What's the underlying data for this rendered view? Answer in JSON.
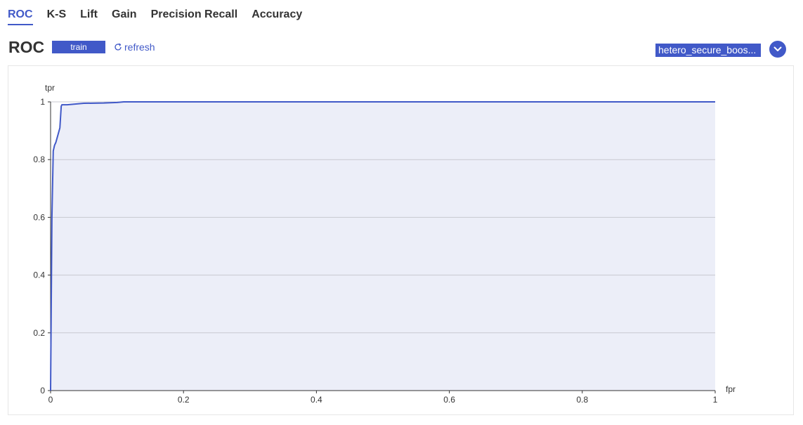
{
  "tabs": [
    {
      "label": "ROC",
      "active": true
    },
    {
      "label": "K-S",
      "active": false
    },
    {
      "label": "Lift",
      "active": false
    },
    {
      "label": "Gain",
      "active": false
    },
    {
      "label": "Precision Recall",
      "active": false
    },
    {
      "label": "Accuracy",
      "active": false
    }
  ],
  "header": {
    "title": "ROC",
    "train_label": "train",
    "refresh_label": "refresh",
    "model_select_value": "hetero_secure_boos..."
  },
  "colors": {
    "accent": "#4159c8",
    "area_fill": "#eceef8",
    "grid": "#c8c8d0"
  },
  "chart_data": {
    "type": "area",
    "xlabel": "fpr",
    "ylabel": "tpr",
    "xlim": [
      0,
      1
    ],
    "ylim": [
      0,
      1
    ],
    "xticks": [
      0,
      0.2,
      0.4,
      0.6,
      0.8,
      1
    ],
    "yticks": [
      0,
      0.2,
      0.4,
      0.6,
      0.8,
      1
    ],
    "grid": true,
    "series": [
      {
        "x": [
          0,
          0.001,
          0.002,
          0.004,
          0.006,
          0.008,
          0.014,
          0.016,
          0.017,
          0.025,
          0.05,
          0.08,
          0.1,
          0.11,
          0.2,
          1
        ],
        "y": [
          0,
          0.3,
          0.6,
          0.83,
          0.85,
          0.86,
          0.91,
          0.985,
          0.99,
          0.99,
          0.995,
          0.996,
          0.998,
          1,
          1,
          1
        ]
      }
    ]
  }
}
